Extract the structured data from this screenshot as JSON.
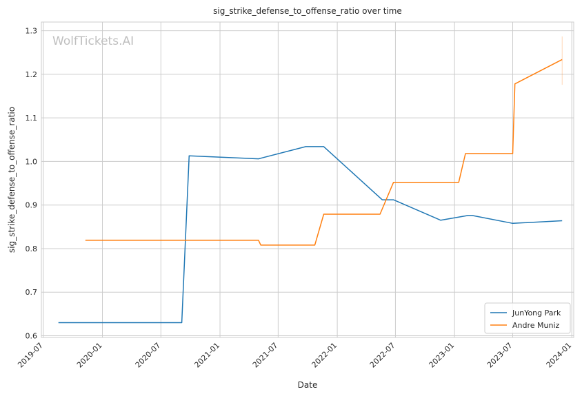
{
  "chart_data": {
    "type": "line",
    "title": "sig_strike_defense_to_offense_ratio over time",
    "xlabel": "Date",
    "ylabel": "sig_strike_defense_to_offense_ratio",
    "xlim": [
      "2019-06-25",
      "2024-01-07"
    ],
    "ylim": [
      0.596,
      1.32
    ],
    "x_ticks": [
      "2019-07",
      "2020-01",
      "2020-07",
      "2021-01",
      "2021-07",
      "2022-01",
      "2022-07",
      "2023-01",
      "2023-07",
      "2024-01"
    ],
    "y_ticks": [
      0.6,
      0.7,
      0.8,
      0.9,
      1.0,
      1.1,
      1.2,
      1.3
    ],
    "y_tick_labels": [
      "0.6",
      "0.7",
      "0.8",
      "0.9",
      "1.0",
      "1.1",
      "1.2",
      "1.3"
    ],
    "grid": true,
    "legend_position": "lower-right",
    "watermark": "WolfTickets.AI",
    "series": [
      {
        "name": "JunYong Park",
        "color": "#1f77b4",
        "points": [
          {
            "x": "2019-08-17",
            "y": 0.63
          },
          {
            "x": "2020-09-04",
            "y": 0.63
          },
          {
            "x": "2020-09-27",
            "y": 1.013
          },
          {
            "x": "2021-05-01",
            "y": 1.006
          },
          {
            "x": "2021-09-25",
            "y": 1.034
          },
          {
            "x": "2021-11-20",
            "y": 1.034
          },
          {
            "x": "2022-05-21",
            "y": 0.912
          },
          {
            "x": "2022-06-25",
            "y": 0.912
          },
          {
            "x": "2022-11-19",
            "y": 0.865
          },
          {
            "x": "2023-02-12",
            "y": 0.876
          },
          {
            "x": "2023-02-25",
            "y": 0.876
          },
          {
            "x": "2023-07-01",
            "y": 0.858
          },
          {
            "x": "2023-12-02",
            "y": 0.864
          }
        ]
      },
      {
        "name": "Andre Muniz",
        "color": "#ff7f0e",
        "points": [
          {
            "x": "2019-11-09",
            "y": 0.819
          },
          {
            "x": "2021-05-01",
            "y": 0.819
          },
          {
            "x": "2021-05-08",
            "y": 0.808
          },
          {
            "x": "2021-10-23",
            "y": 0.808
          },
          {
            "x": "2021-11-20",
            "y": 0.879
          },
          {
            "x": "2022-05-14",
            "y": 0.879
          },
          {
            "x": "2022-06-25",
            "y": 0.952
          },
          {
            "x": "2023-01-14",
            "y": 0.952
          },
          {
            "x": "2023-02-04",
            "y": 1.018
          },
          {
            "x": "2023-07-01",
            "y": 1.018
          },
          {
            "x": "2023-07-08",
            "y": 1.178
          },
          {
            "x": "2023-12-02",
            "y": 1.234
          }
        ],
        "error_bar": {
          "x": "2023-12-02",
          "low": 1.176,
          "high": 1.287
        }
      }
    ]
  }
}
